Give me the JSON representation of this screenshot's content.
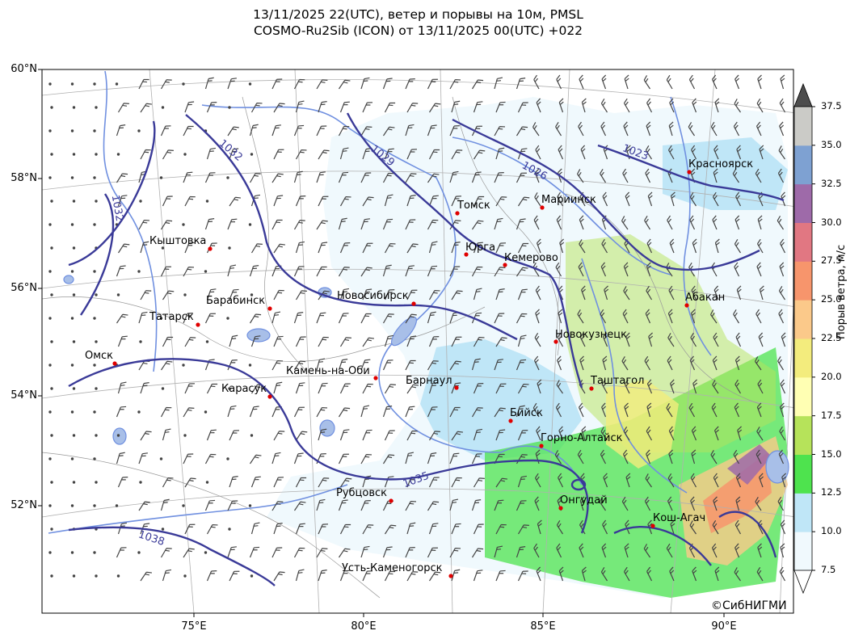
{
  "title": {
    "line1": "13/11/2025 22(UTC), ветер и порывы на 10м, PMSL",
    "line2": "COSMO-Ru2Sib (ICON) от 13/11/2025 00(UTC) +022"
  },
  "map": {
    "lat_labels": [
      "60°N",
      "58°N",
      "56°N",
      "54°N",
      "52°N"
    ],
    "lon_labels": [
      "75°E",
      "80°E",
      "85°E",
      "90°E"
    ],
    "isobars": [
      "1032",
      "1032",
      "1029",
      "1026",
      "1023",
      "1035",
      "1038"
    ],
    "cities": [
      {
        "name": "Красноярск"
      },
      {
        "name": "Томск"
      },
      {
        "name": "Мариинск"
      },
      {
        "name": "Кыштовка"
      },
      {
        "name": "Юрга"
      },
      {
        "name": "Кемерово"
      },
      {
        "name": "Новосибирск"
      },
      {
        "name": "Абакан"
      },
      {
        "name": "Барабинск"
      },
      {
        "name": "Татарск"
      },
      {
        "name": "Новокузнецк"
      },
      {
        "name": "Омск"
      },
      {
        "name": "Камень-на-Оби"
      },
      {
        "name": "Барнаул"
      },
      {
        "name": "Таштагол"
      },
      {
        "name": "Карасук"
      },
      {
        "name": "Бийск"
      },
      {
        "name": "Горно-Алтайск"
      },
      {
        "name": "Рубцовск"
      },
      {
        "name": "Онгудай"
      },
      {
        "name": "Кош-Агач"
      },
      {
        "name": "Усть-Каменогорск"
      }
    ],
    "copyright": "©СибНИГМИ"
  },
  "colorbar": {
    "label": "Порыв ветра, м/с",
    "ticks": [
      "7.5",
      "10.0",
      "12.5",
      "15.0",
      "17.5",
      "20.0",
      "22.5",
      "25.0",
      "27.5",
      "30.0",
      "32.5",
      "35.0",
      "37.5"
    ],
    "colors": [
      "#f0f9fd",
      "#bfe6f7",
      "#4ee34e",
      "#b6e35a",
      "#ffffb3",
      "#f3ec7d",
      "#fbc98a",
      "#f7956c",
      "#e17782",
      "#9e6aa9",
      "#7ea1d2",
      "#cbcbc7"
    ],
    "extend_low_color": "#ffffff",
    "extend_high_color": "#4d4d4d"
  }
}
